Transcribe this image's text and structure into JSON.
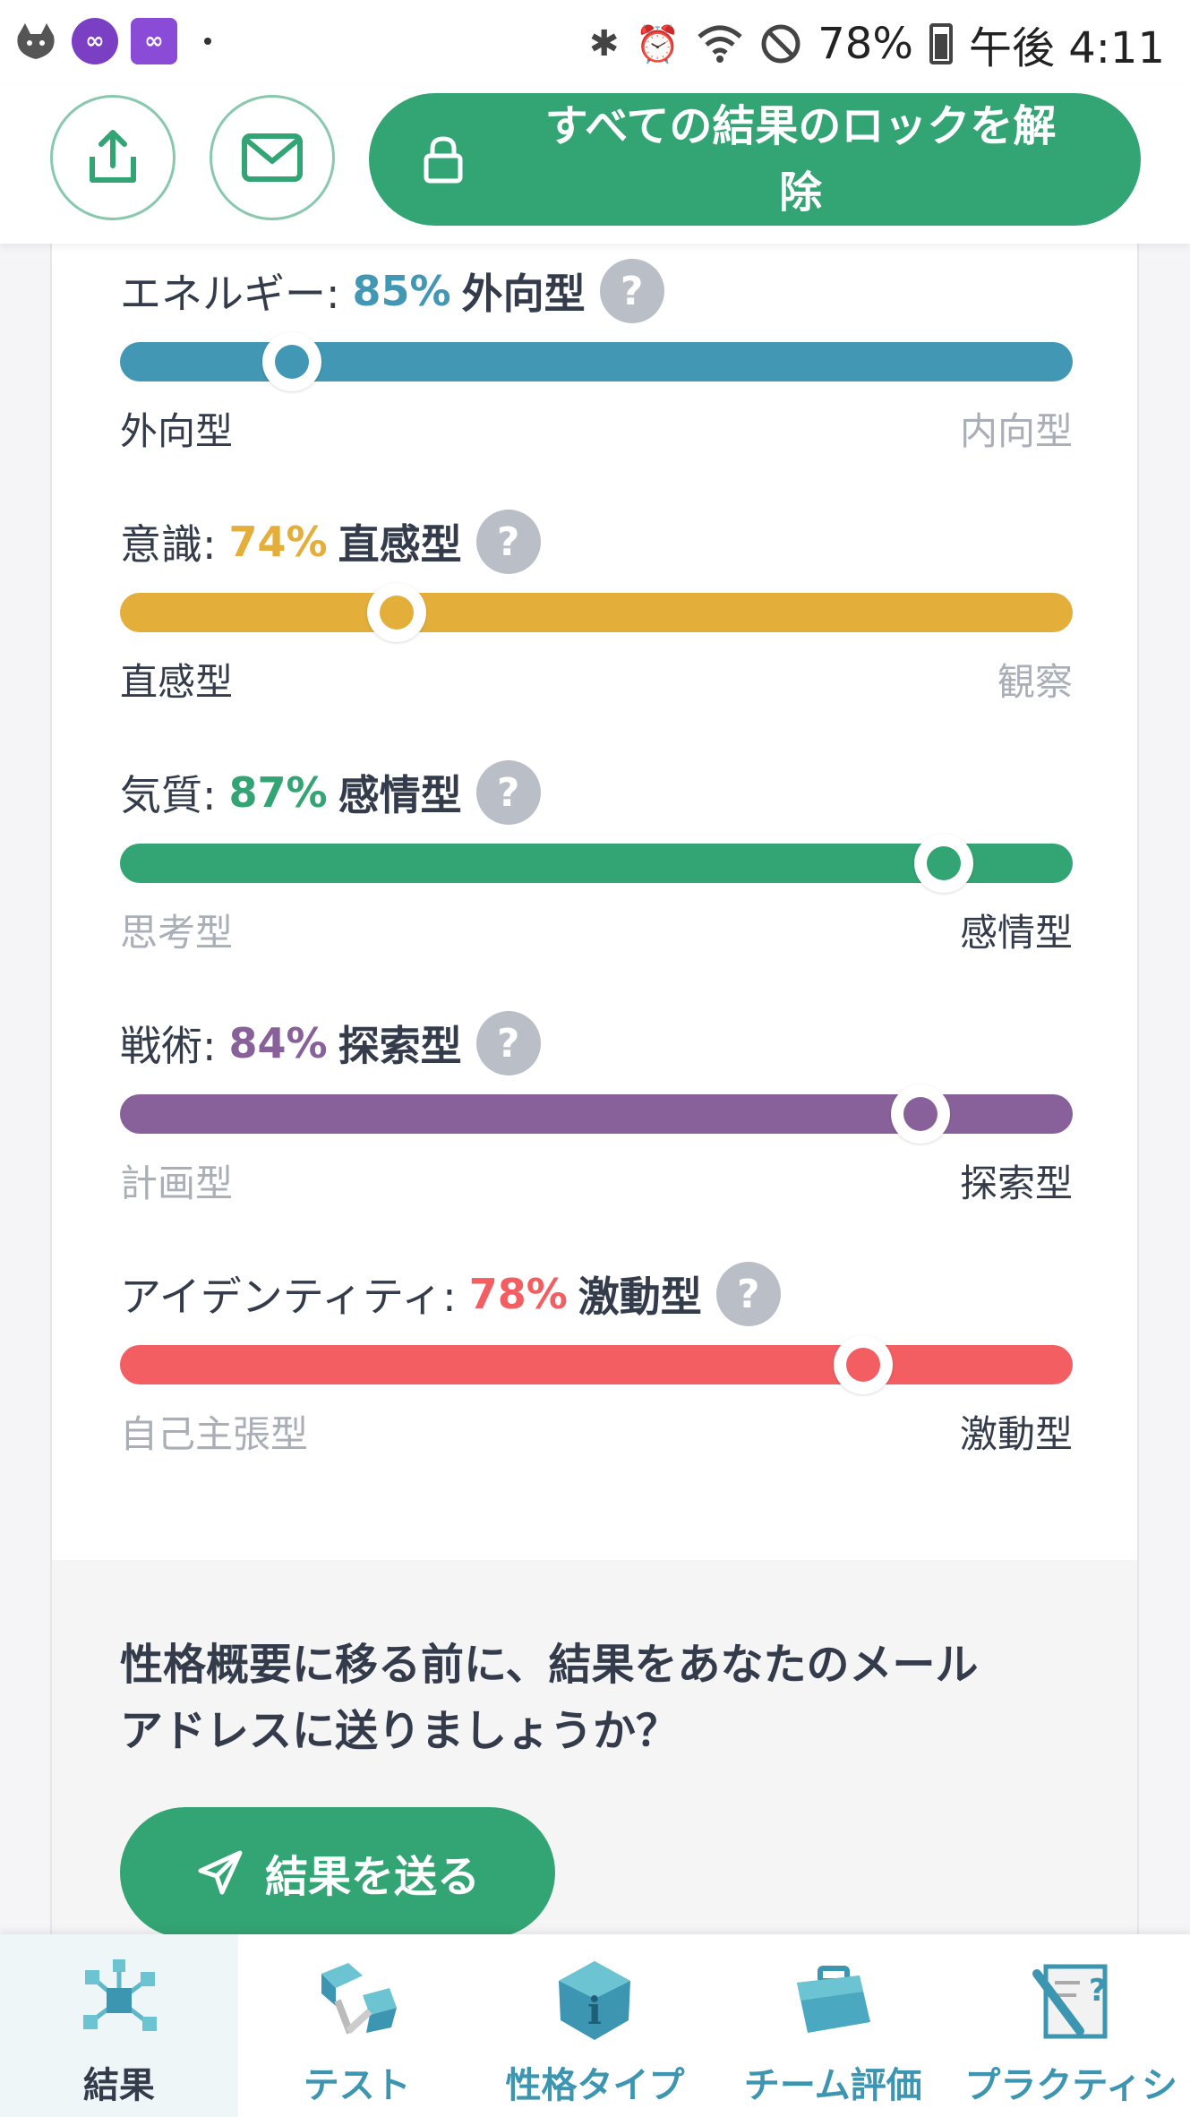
{
  "status_bar": {
    "battery": "78%",
    "time": "午後 4:11",
    "icons": [
      "app-cat-icon",
      "app-infinity-icon",
      "app-infinity-square-icon",
      "bluetooth-icon",
      "alarm-icon",
      "wifi-icon",
      "do-not-disturb-icon",
      "battery-icon"
    ]
  },
  "header": {
    "unlock_line1": "すべての結果のロックを解",
    "unlock_line2": "除"
  },
  "traits": [
    {
      "label": "エネルギー:",
      "percent": "85%",
      "percent_value": 85,
      "type": "外向型",
      "left_pole": "外向型",
      "right_pole": "内向型",
      "position": 0.18,
      "active_side": "left",
      "color": "#4298b4"
    },
    {
      "label": "意識:",
      "percent": "74%",
      "percent_value": 74,
      "type": "直感型",
      "left_pole": "直感型",
      "right_pole": "観察",
      "position": 0.29,
      "active_side": "left",
      "color": "#e4ae3a"
    },
    {
      "label": "気質:",
      "percent": "87%",
      "percent_value": 87,
      "type": "感情型",
      "left_pole": "思考型",
      "right_pole": "感情型",
      "position": 0.865,
      "active_side": "right",
      "color": "#33a474"
    },
    {
      "label": "戦術:",
      "percent": "84%",
      "percent_value": 84,
      "type": "探索型",
      "left_pole": "計画型",
      "right_pole": "探索型",
      "position": 0.84,
      "active_side": "right",
      "color": "#88619a"
    },
    {
      "label": "アイデンティティ:",
      "percent": "78%",
      "percent_value": 78,
      "type": "激動型",
      "left_pole": "自己主張型",
      "right_pole": "激動型",
      "position": 0.78,
      "active_side": "right",
      "color": "#f25e62"
    }
  ],
  "email_prompt": {
    "question_line1": "性格概要に移る前に、結果をあなたのメール",
    "question_line2": "アドレスに送りましょうか？",
    "send_label": "結果を送る"
  },
  "nav": {
    "items": [
      {
        "label": "結果",
        "icon": "results-molecule-icon",
        "active": true
      },
      {
        "label": "テスト",
        "icon": "test-cubes-icon",
        "active": false
      },
      {
        "label": "性格タイプ",
        "icon": "personality-info-icon",
        "active": false
      },
      {
        "label": "チーム評価",
        "icon": "team-briefcase-icon",
        "active": false
      },
      {
        "label": "プラクティシ",
        "icon": "practice-notebook-icon",
        "active": false
      }
    ]
  }
}
